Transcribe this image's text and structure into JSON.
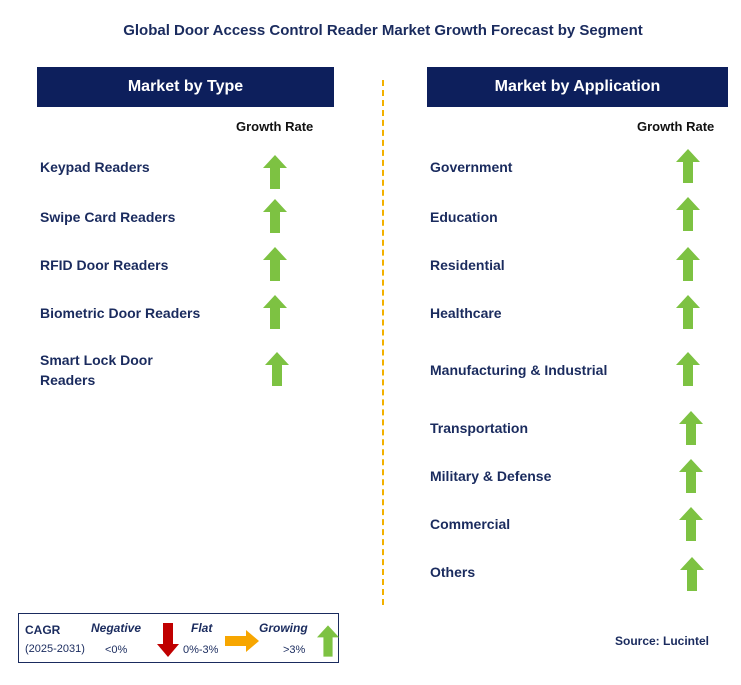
{
  "title": "Global Door Access Control Reader Market Growth Forecast by Segment",
  "left": {
    "header": "Market by Type",
    "subheader": "Growth Rate",
    "items": [
      {
        "label": "Keypad Readers",
        "trend": "growing"
      },
      {
        "label": "Swipe Card Readers",
        "trend": "growing"
      },
      {
        "label": "RFID Door Readers",
        "trend": "growing"
      },
      {
        "label": "Biometric Door Readers",
        "trend": "growing"
      },
      {
        "label": "Smart Lock Door Readers",
        "trend": "growing"
      }
    ]
  },
  "right": {
    "header": "Market by Application",
    "subheader": "Growth Rate",
    "items": [
      {
        "label": "Government",
        "trend": "growing"
      },
      {
        "label": "Education",
        "trend": "growing"
      },
      {
        "label": "Residential",
        "trend": "growing"
      },
      {
        "label": "Healthcare",
        "trend": "growing"
      },
      {
        "label": "Manufacturing & Industrial",
        "trend": "growing"
      },
      {
        "label": "Transportation",
        "trend": "growing"
      },
      {
        "label": "Military & Defense",
        "trend": "growing"
      },
      {
        "label": "Commercial",
        "trend": "growing"
      },
      {
        "label": "Others",
        "trend": "growing"
      }
    ]
  },
  "legend": {
    "cagr": "CAGR",
    "period": "(2025-2031)",
    "negative": {
      "label": "Negative",
      "range": "<0%"
    },
    "flat": {
      "label": "Flat",
      "range": "0%-3%"
    },
    "growing": {
      "label": "Growing",
      "range": ">3%"
    }
  },
  "source": "Source: Lucintel",
  "colors": {
    "navy": "#0d1f5c",
    "text": "#1a2b5e",
    "green": "#7dc242",
    "red": "#c00000",
    "orange": "#f7a600",
    "divider": "#f2b100"
  }
}
